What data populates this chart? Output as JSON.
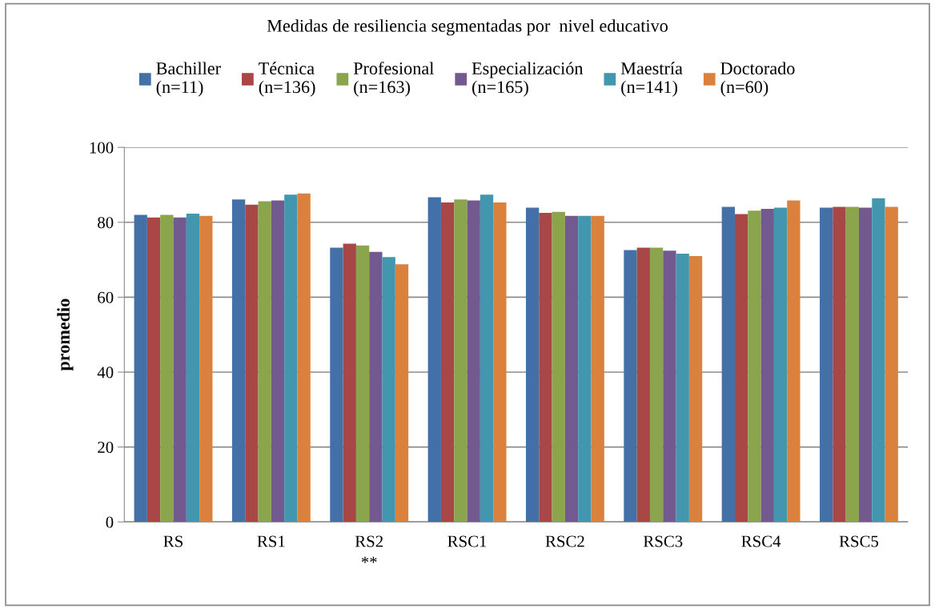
{
  "chart_data": {
    "type": "bar",
    "title": "Medidas de resiliencia segmentadas por  nivel educativo",
    "ylabel": "promedio",
    "categories": [
      "RS",
      "RS1",
      "RS2\n**",
      "RSC1",
      "RSC2",
      "RSC3",
      "RSC4",
      "RSC5"
    ],
    "series": [
      {
        "name": "Bachiller\n(n=11)",
        "color": "#4470a8",
        "values": [
          82.0,
          86.1,
          73.2,
          86.7,
          83.9,
          72.6,
          84.1,
          83.9
        ]
      },
      {
        "name": "Técnica\n(n=136)",
        "color": "#a84745",
        "values": [
          81.3,
          84.7,
          74.3,
          85.3,
          82.5,
          73.2,
          82.2,
          84.1
        ]
      },
      {
        "name": "Profesional\n(n=163)",
        "color": "#8aa54c",
        "values": [
          82.0,
          85.6,
          73.8,
          86.1,
          82.8,
          73.2,
          83.1,
          84.1
        ]
      },
      {
        "name": "Especialización\n(n=165)",
        "color": "#72598f",
        "values": [
          81.3,
          85.8,
          72.1,
          85.8,
          81.7,
          72.4,
          83.6,
          83.9
        ]
      },
      {
        "name": "Maestría\n(n=141)",
        "color": "#4297ae",
        "values": [
          82.3,
          87.4,
          70.7,
          87.4,
          81.7,
          71.6,
          83.9,
          86.4
        ]
      },
      {
        "name": "Doctorado\n(n=60)",
        "color": "#da823d",
        "values": [
          81.7,
          87.7,
          68.8,
          85.3,
          81.7,
          71.0,
          85.8,
          84.1
        ]
      }
    ],
    "ylim": [
      0,
      100
    ],
    "yticks": [
      0,
      20,
      40,
      60,
      80,
      100
    ],
    "grid": "y",
    "legend": "top"
  }
}
